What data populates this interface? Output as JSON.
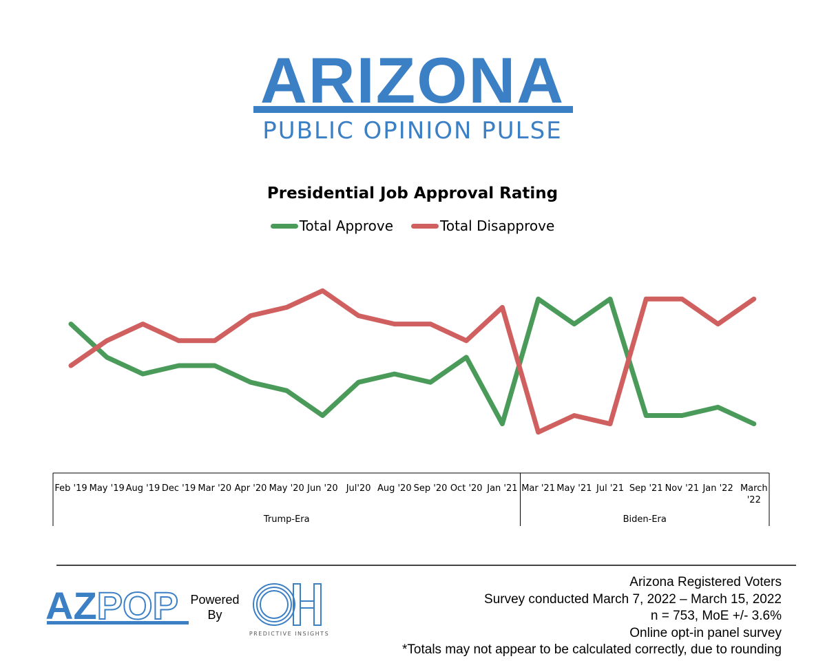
{
  "branding": {
    "title": "ARIZONA",
    "subtitle": "PUBLIC OPINION PULSE",
    "color": "#3b7fc4"
  },
  "chart_data": {
    "type": "line",
    "title": "Presidential Job Approval Rating",
    "categories": [
      "Feb '19",
      "May '19",
      "Aug '19",
      "Dec '19",
      "Mar '20",
      "Apr '20",
      "May '20",
      "Jun '20",
      "Jul'20",
      "Aug '20",
      "Sep '20",
      "Oct '20",
      "Jan '21",
      "Mar '21",
      "May '21",
      "Jul '21",
      "Sep '21",
      "Nov '21",
      "Jan '22",
      "March '22"
    ],
    "category_groups": [
      {
        "label": "Trump-Era",
        "span": [
          0,
          12
        ]
      },
      {
        "label": "Biden-Era",
        "span": [
          13,
          19
        ]
      }
    ],
    "series": [
      {
        "name": "Total Approve",
        "color": "#4a9a5a",
        "values": [
          53,
          49,
          47,
          48,
          48,
          46,
          45,
          42,
          46,
          47,
          46,
          49,
          41,
          56,
          53,
          56,
          42,
          42,
          43,
          41
        ]
      },
      {
        "name": "Total Disapprove",
        "color": "#d06060",
        "values": [
          48,
          51,
          53,
          51,
          51,
          54,
          55,
          57,
          54,
          53,
          53,
          51,
          55,
          40,
          42,
          41,
          56,
          56,
          53,
          56
        ]
      }
    ],
    "ylim": [
      36,
      60
    ],
    "xlabel": "",
    "ylabel": "",
    "grid": false,
    "legend_position": "top-center"
  },
  "footer": {
    "lines": [
      "Arizona Registered Voters",
      "Survey conducted March 7, 2022 – March 15, 2022",
      "n = 753, MoE +/- 3.6%",
      "Online opt-in panel survey",
      "*Totals may not appear to be calculated correctly, due to rounding"
    ],
    "azpop_az": "AZ",
    "azpop_pop": "POP",
    "powered_by": "Powered By",
    "oh_logo_text": "OH",
    "oh_logo_sub": "PREDICTIVE INSIGHTS"
  }
}
